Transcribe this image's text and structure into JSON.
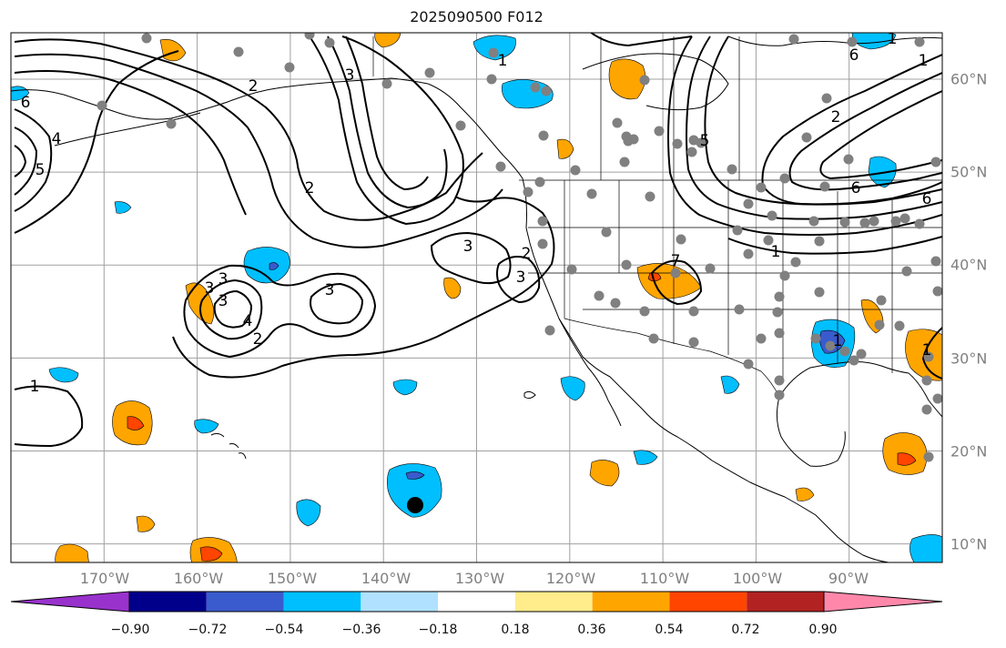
{
  "title": "2025090500 F012",
  "map": {
    "region": "Eastern North Pacific / North America",
    "lon_range": [
      -180,
      -80
    ],
    "lat_range": [
      8,
      65
    ],
    "lon_labels": [
      "170°W",
      "160°W",
      "150°W",
      "140°W",
      "130°W",
      "120°W",
      "110°W",
      "100°W",
      "90°W"
    ],
    "lat_labels": [
      "60°N",
      "50°N",
      "40°N",
      "30°N",
      "20°N",
      "10°N"
    ],
    "grid_color": "#a0a0a0",
    "label_color": "#808080"
  },
  "colorbar": {
    "ticks": [
      "−0.90",
      "−0.72",
      "−0.54",
      "−0.36",
      "−0.18",
      "0.18",
      "0.36",
      "0.54",
      "0.72",
      "0.90"
    ],
    "colors": [
      "#9932cc",
      "#00008b",
      "#3a5bcd",
      "#00bfff",
      "#b0e2ff",
      "#ffffff",
      "#ffec8b",
      "#ffa500",
      "#ff4500",
      "#b22222",
      "#ff88aa"
    ]
  },
  "contour_labels": [
    "6",
    "5",
    "4",
    "3",
    "3",
    "3",
    "3",
    "4",
    "2",
    "3",
    "2",
    "3",
    "3",
    "2",
    "2",
    "1",
    "1",
    "1",
    "6",
    "5",
    "7",
    "1",
    "1",
    "6",
    "6",
    "2",
    "1",
    "1"
  ],
  "markers": {
    "station_color": "#808080",
    "highlight_color": "#000000"
  }
}
